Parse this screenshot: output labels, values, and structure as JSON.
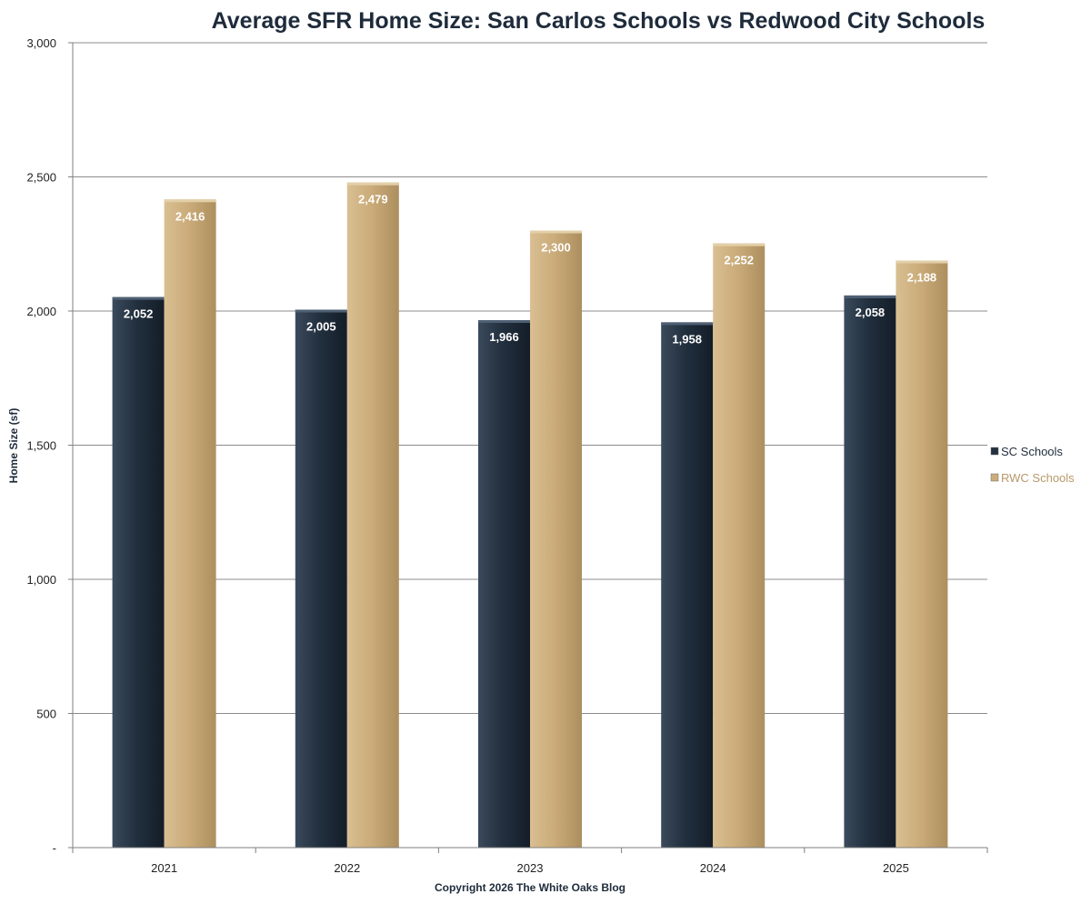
{
  "chart_data": {
    "type": "bar",
    "title": "Average SFR Home Size: San Carlos Schools vs Redwood City Schools",
    "xlabel": "Copyright 2026 The White Oaks Blog",
    "ylabel": "Home Size (sf)",
    "categories": [
      "2021",
      "2022",
      "2023",
      "2024",
      "2025"
    ],
    "series": [
      {
        "name": "SC Schools",
        "color": "#22303f",
        "values": [
          2052,
          2005,
          1966,
          1958,
          2058
        ],
        "labels": [
          "2,052",
          "2,005",
          "1,966",
          "1,958",
          "2,058"
        ]
      },
      {
        "name": "RWC Schools",
        "color": "#cbac7a",
        "values": [
          2416,
          2479,
          2300,
          2252,
          2188
        ],
        "labels": [
          "2,416",
          "2,479",
          "2,300",
          "2,252",
          "2,188"
        ]
      }
    ],
    "ylim": [
      0,
      3000
    ],
    "yticks": [
      0,
      500,
      1000,
      1500,
      2000,
      2500,
      3000
    ],
    "ytick_labels": [
      "-",
      "500",
      "1,000",
      "1,500",
      "2,000",
      "2,500",
      "3,000"
    ],
    "grid": true,
    "legend_position": "right"
  }
}
